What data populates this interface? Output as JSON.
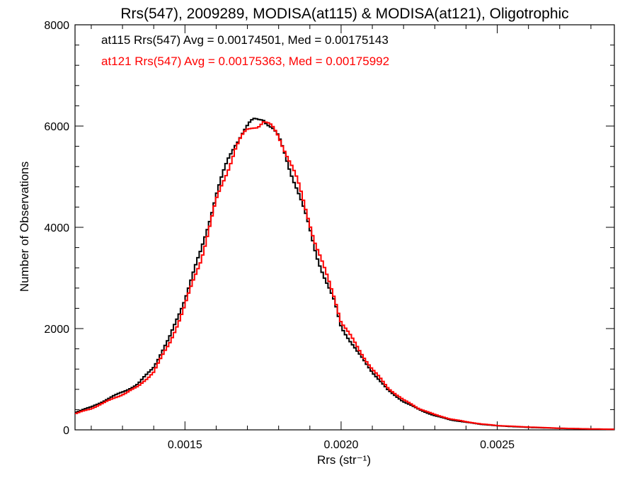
{
  "chart_data": {
    "type": "line",
    "title": "Rrs(547), 2009289, MODISA(at115) & MODISA(at121), Oligotrophic",
    "xlabel": "Rrs (str⁻¹)",
    "ylabel": "Number of Observations",
    "xlim": [
      0.001148,
      0.002875
    ],
    "ylim": [
      0,
      8000
    ],
    "x_ticks": [
      0.0015,
      0.002,
      0.0025
    ],
    "x_tick_labels": [
      "0.0015",
      "0.0020",
      "0.0025"
    ],
    "y_ticks": [
      0,
      2000,
      4000,
      6000,
      8000
    ],
    "y_tick_labels": [
      "0",
      "2000",
      "4000",
      "6000",
      "8000"
    ],
    "grid": false,
    "legend_position": "top-left",
    "annotations": [
      {
        "text": "at115 Rrs(547) Avg = 0.00174501, Med = 0.00175143",
        "color": "#000000"
      },
      {
        "text": "at121 Rrs(547) Avg = 0.00175363, Med = 0.00175992",
        "color": "#ff0000"
      }
    ],
    "series": [
      {
        "color": "#000000",
        "x": [
          0.00115,
          0.0012,
          0.00125,
          0.0013,
          0.00135,
          0.0014,
          0.00145,
          0.0015,
          0.00155,
          0.0016,
          0.00162,
          0.00164,
          0.00166,
          0.00168,
          0.0017,
          0.00172,
          0.00174,
          0.00175,
          0.00176,
          0.00178,
          0.0018,
          0.00182,
          0.00184,
          0.00186,
          0.00188,
          0.0019,
          0.00192,
          0.00195,
          0.00198,
          0.002,
          0.00205,
          0.0021,
          0.00215,
          0.0022,
          0.00225,
          0.0023,
          0.00235,
          0.0024,
          0.00245,
          0.0025,
          0.0026,
          0.0027,
          0.0028,
          0.00287
        ],
        "y": [
          350,
          450,
          600,
          750,
          900,
          1250,
          1800,
          2600,
          3500,
          4650,
          5000,
          5350,
          5650,
          5850,
          5980,
          6100,
          6150,
          6180,
          6100,
          5950,
          5750,
          5450,
          5100,
          4750,
          4350,
          3950,
          3500,
          2950,
          2500,
          2050,
          1550,
          1150,
          780,
          560,
          400,
          280,
          200,
          150,
          110,
          80,
          50,
          30,
          15,
          10
        ]
      },
      {
        "color": "#ff0000",
        "x": [
          0.00115,
          0.0012,
          0.00125,
          0.0013,
          0.00135,
          0.0014,
          0.00145,
          0.0015,
          0.00155,
          0.0016,
          0.00162,
          0.00164,
          0.00166,
          0.00168,
          0.0017,
          0.00172,
          0.00174,
          0.00175,
          0.00176,
          0.00178,
          0.0018,
          0.00182,
          0.00184,
          0.00186,
          0.00188,
          0.0019,
          0.00192,
          0.00195,
          0.00198,
          0.002,
          0.00205,
          0.0021,
          0.00215,
          0.0022,
          0.00225,
          0.0023,
          0.00235,
          0.0024,
          0.00245,
          0.0025,
          0.0026,
          0.0027,
          0.0028,
          0.00287
        ],
        "y": [
          320,
          420,
          560,
          700,
          850,
          1150,
          1700,
          2450,
          3350,
          4500,
          4850,
          5200,
          5550,
          5750,
          5900,
          6000,
          6050,
          6100,
          6050,
          5950,
          5800,
          5550,
          5250,
          4900,
          4500,
          4100,
          3650,
          3100,
          2600,
          2150,
          1650,
          1200,
          830,
          590,
          420,
          300,
          215,
          160,
          115,
          85,
          55,
          32,
          18,
          12
        ]
      }
    ]
  }
}
